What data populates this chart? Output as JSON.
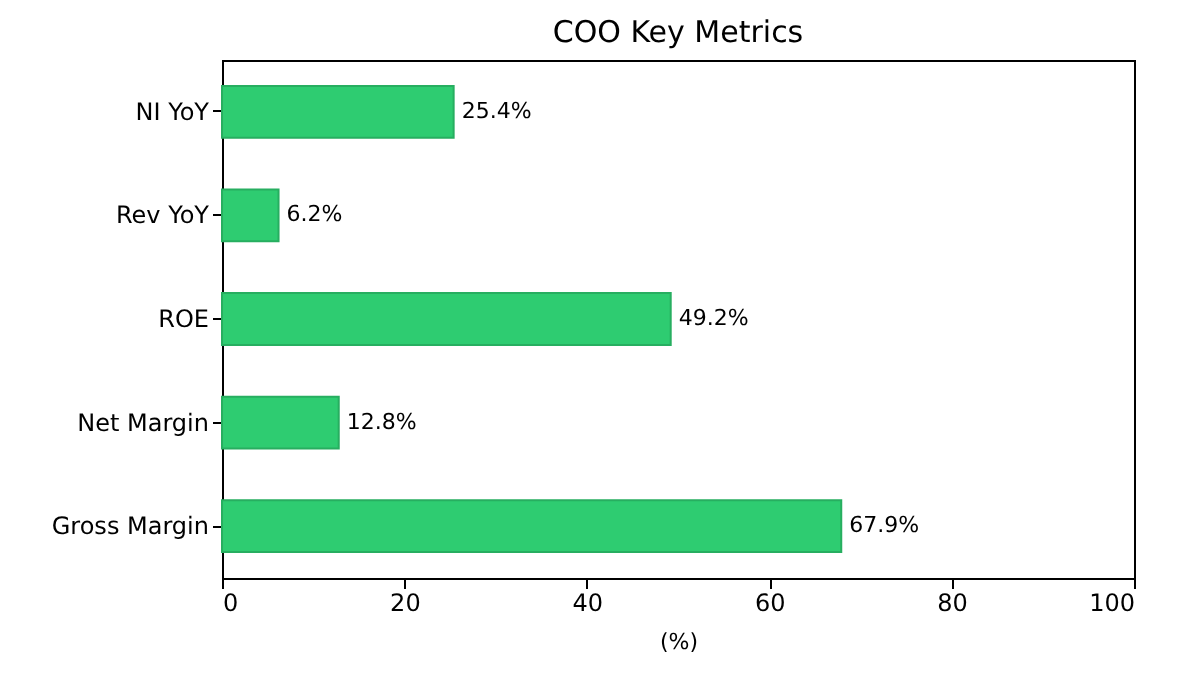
{
  "chart_data": {
    "type": "bar",
    "orientation": "horizontal",
    "title": "COO Key Metrics",
    "xlabel": "(%)",
    "categories": [
      "NI YoY",
      "Rev YoY",
      "ROE",
      "Net Margin",
      "Gross Margin"
    ],
    "values": [
      25.4,
      6.2,
      49.2,
      12.8,
      67.9
    ],
    "value_labels": [
      "25.4%",
      "6.2%",
      "49.2%",
      "12.8%",
      "67.9%"
    ],
    "color": "#2ecc71",
    "xlim": [
      0,
      100
    ],
    "xticks": [
      0,
      20,
      40,
      60,
      80,
      100
    ],
    "grid": false
  }
}
